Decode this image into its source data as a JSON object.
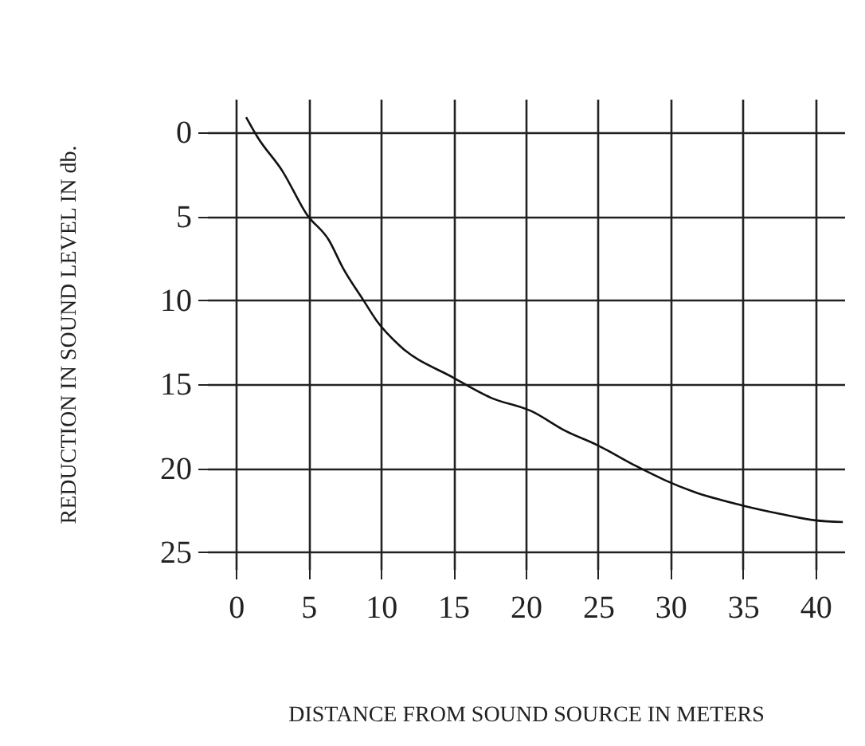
{
  "chart_data": {
    "type": "line",
    "xlabel": "DISTANCE FROM SOUND SOURCE IN METERS",
    "ylabel": "REDUCTION IN SOUND LEVEL IN db.",
    "x": [
      0.7,
      1.5,
      3.2,
      4.9,
      6.4,
      7.4,
      8.8,
      9.7,
      11.3,
      15,
      17.6,
      20.4,
      22.8,
      24.9,
      27.7,
      29.6,
      31.6,
      34.9,
      37.5,
      40,
      41.9
    ],
    "series": [
      {
        "color": "#111111",
        "values": [
          -0.9,
          0.3,
          2.3,
          4.9,
          6.4,
          8.1,
          10,
          11.2,
          12.7,
          14.6,
          15.8,
          16.6,
          17.8,
          18.6,
          19.9,
          20.7,
          21.4,
          22.2,
          22.7,
          23.1,
          23.2
        ]
      }
    ],
    "xlim": [
      -2,
      42
    ],
    "xticks": [
      0,
      5,
      10,
      15,
      20,
      25,
      30,
      35,
      40
    ],
    "ylim": [
      26,
      -2
    ],
    "yticks": [
      0,
      5,
      10,
      15,
      20,
      25
    ],
    "grid": true,
    "legend": false,
    "marker": "none",
    "line_style": "solid"
  }
}
